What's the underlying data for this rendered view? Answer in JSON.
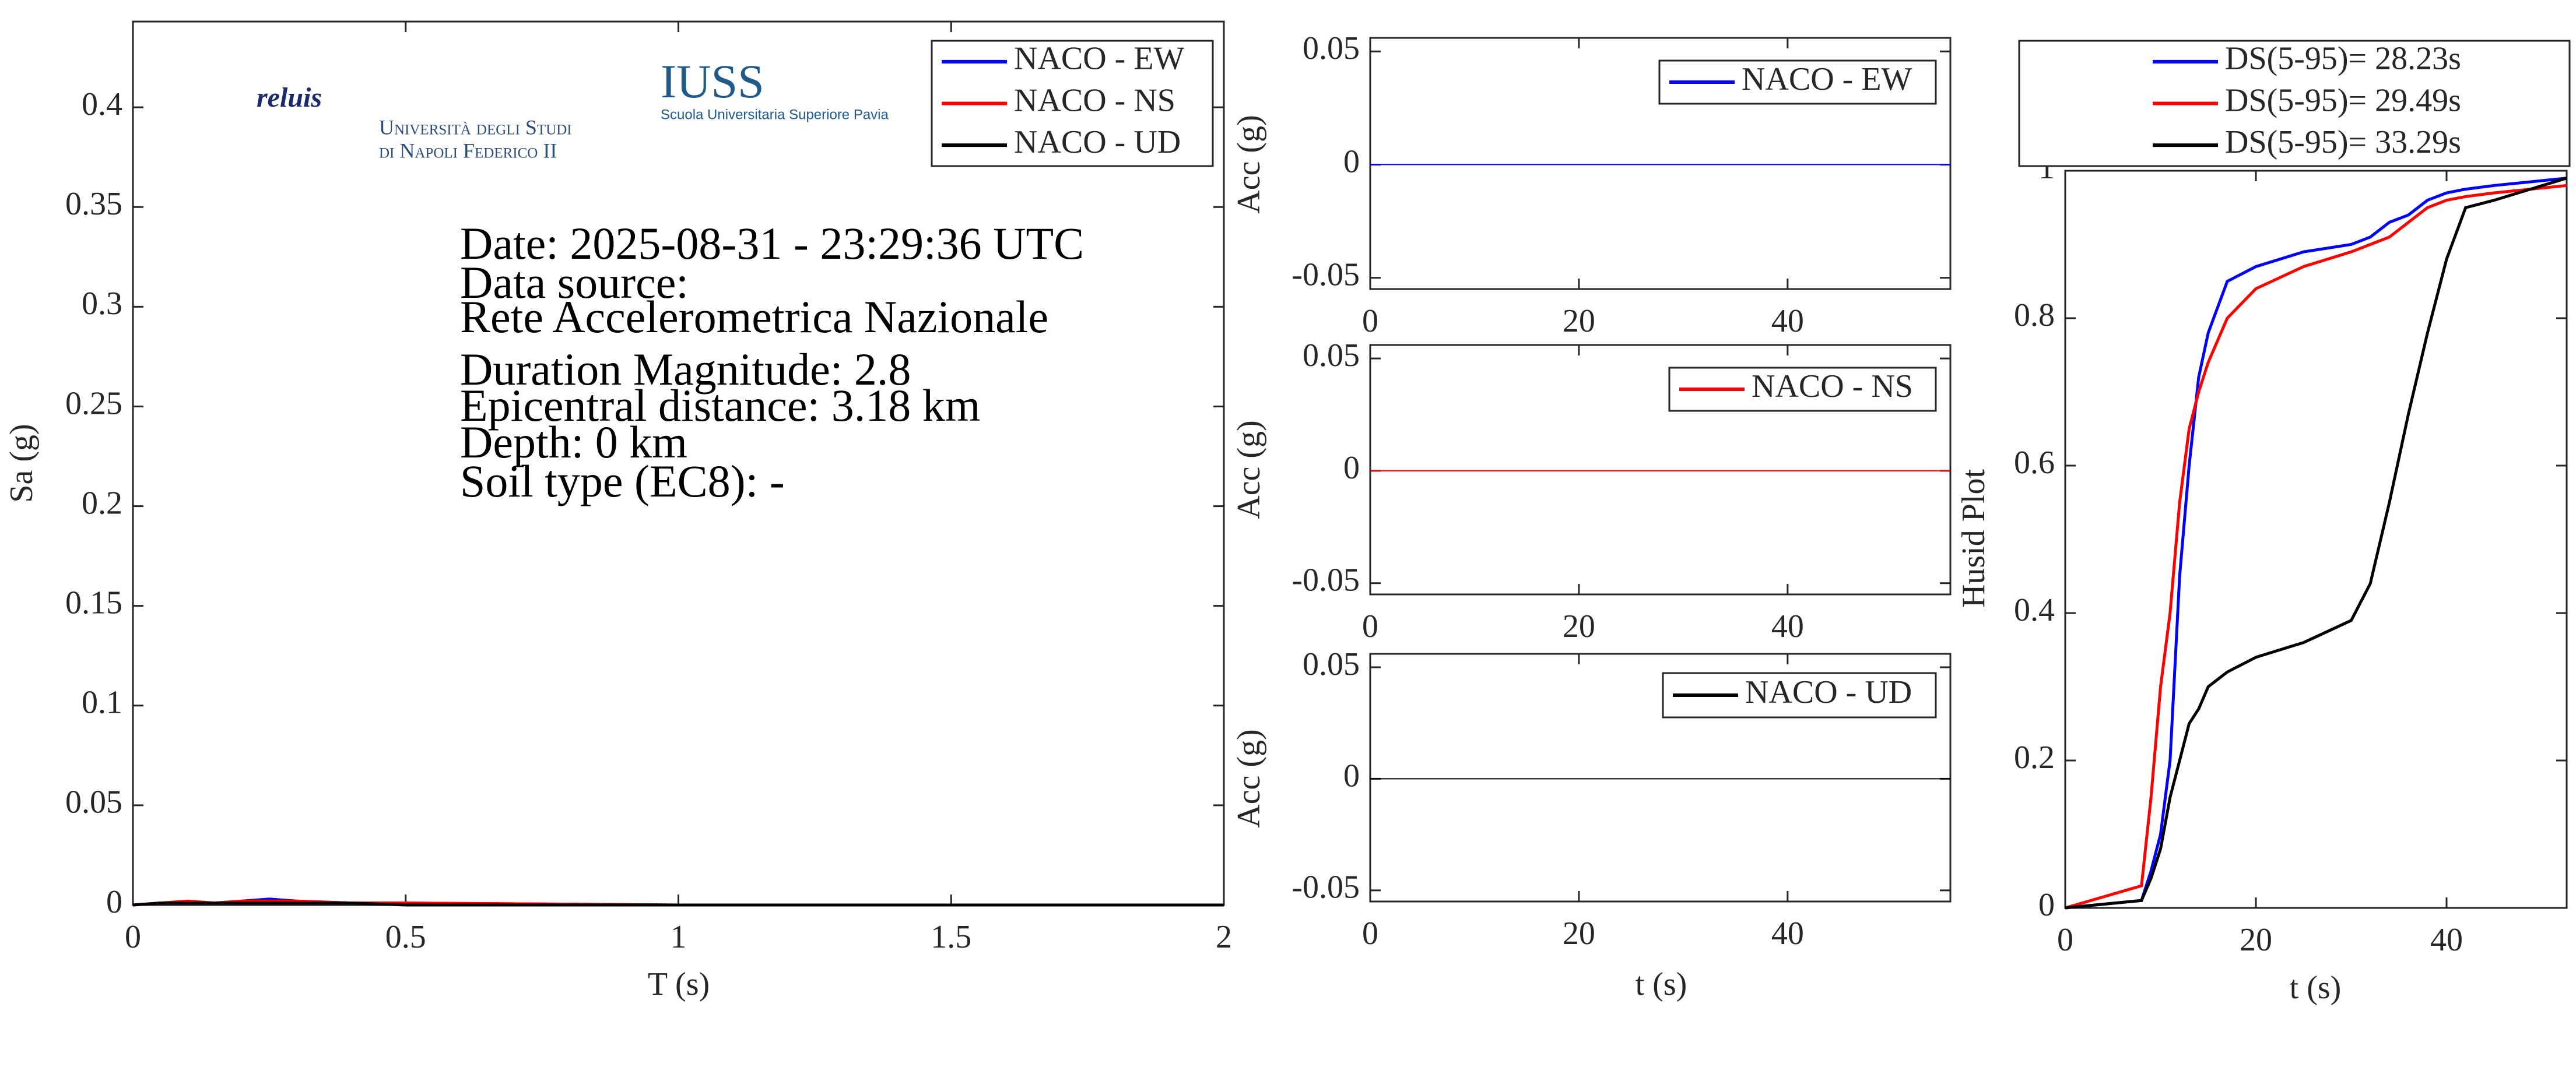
{
  "chart_data": [
    {
      "type": "line",
      "x_label": "T (s)",
      "y_label": "Sa (g)",
      "x": [
        0,
        0.05,
        0.1,
        0.15,
        0.2,
        0.25,
        0.3,
        0.4,
        0.5,
        1,
        1.5,
        2
      ],
      "series": [
        {
          "name": "NACO - EW",
          "color": "#0000ff",
          "values": [
            0,
            0.001,
            0.001,
            0.001,
            0.002,
            0.003,
            0.002,
            0.001,
            0.001,
            0,
            0,
            0
          ]
        },
        {
          "name": "NACO - NS",
          "color": "#ff0000",
          "values": [
            0,
            0.001,
            0.002,
            0.001,
            0.002,
            0.002,
            0.002,
            0.001,
            0.001,
            0,
            0,
            0
          ]
        },
        {
          "name": "NACO - UD",
          "color": "#000000",
          "values": [
            0,
            0.001,
            0.001,
            0.001,
            0.001,
            0.001,
            0.001,
            0.001,
            0,
            0,
            0,
            0
          ]
        }
      ],
      "xlim": [
        0,
        2
      ],
      "xticks": [
        0,
        0.5,
        1,
        1.5,
        2
      ],
      "ylim": [
        0,
        0.443
      ],
      "yticks": [
        0,
        0.05,
        0.1,
        0.15,
        0.2,
        0.25,
        0.3,
        0.35,
        0.4
      ],
      "legend": "upper right",
      "annotations": [
        "Date: 2025-08-31 - 23:29:36 UTC",
        "Data source:",
        "Rete Accelerometrica Nazionale",
        "Duration Magnitude: 2.8",
        "Epicentral distance: 3.18 km",
        "Depth: 0 km",
        "Soil type (EC8): -"
      ],
      "logos": [
        "reluis",
        "Università degli Studi",
        "di Napoli Federico II",
        "IUSS",
        "Scuola Universitaria Superiore Pavia"
      ]
    },
    {
      "type": "line",
      "x_label": "t (s)",
      "y_label": "Acc (g)",
      "x": [
        0,
        10,
        20,
        30,
        40,
        50,
        55.6
      ],
      "series": [
        {
          "name": "NACO - EW",
          "color": "#0000ff",
          "values": [
            0,
            0,
            0,
            0,
            0,
            0,
            0
          ]
        }
      ],
      "xlim": [
        0,
        55.6
      ],
      "xticks": [
        0,
        20,
        40
      ],
      "ylim": [
        -0.055,
        0.056
      ],
      "yticks": [
        -0.05,
        0,
        0.05
      ],
      "legend": "upper right"
    },
    {
      "type": "line",
      "x_label": "t (s)",
      "y_label": "Acc (g)",
      "x": [
        0,
        10,
        20,
        30,
        40,
        50,
        55.6
      ],
      "series": [
        {
          "name": "NACO - NS",
          "color": "#ff0000",
          "values": [
            0,
            0,
            0,
            0,
            0,
            0,
            0
          ]
        }
      ],
      "xlim": [
        0,
        55.6
      ],
      "xticks": [
        0,
        20,
        40
      ],
      "ylim": [
        -0.055,
        0.056
      ],
      "yticks": [
        -0.05,
        0,
        0.05
      ],
      "legend": "upper right"
    },
    {
      "type": "line",
      "x_label": "t (s)",
      "y_label": "Acc (g)",
      "x": [
        0,
        10,
        20,
        30,
        40,
        50,
        55.6
      ],
      "series": [
        {
          "name": "NACO - UD",
          "color": "#000000",
          "values": [
            0,
            0,
            0,
            0,
            0,
            0,
            0
          ]
        }
      ],
      "xlim": [
        0,
        55.6
      ],
      "xticks": [
        0,
        20,
        40
      ],
      "ylim": [
        -0.055,
        0.056
      ],
      "yticks": [
        -0.05,
        0,
        0.05
      ],
      "legend": "upper right"
    },
    {
      "type": "line",
      "x_label": "t (s)",
      "y_label": "Husid Plot",
      "x": [
        0,
        8,
        9,
        10,
        11,
        12,
        13,
        14,
        15,
        17,
        20,
        25,
        30,
        32,
        34,
        36,
        38,
        40,
        42,
        45,
        52.6
      ],
      "series": [
        {
          "name": "DS(5-95)= 28.23s",
          "color": "#0000ff",
          "values": [
            0,
            0.01,
            0.05,
            0.1,
            0.2,
            0.45,
            0.6,
            0.72,
            0.78,
            0.85,
            0.87,
            0.89,
            0.9,
            0.91,
            0.93,
            0.94,
            0.96,
            0.97,
            0.975,
            0.98,
            0.99
          ]
        },
        {
          "name": "DS(5-95)= 29.49s",
          "color": "#ff0000",
          "values": [
            0,
            0.03,
            0.15,
            0.3,
            0.4,
            0.55,
            0.65,
            0.7,
            0.74,
            0.8,
            0.84,
            0.87,
            0.89,
            0.9,
            0.91,
            0.93,
            0.95,
            0.96,
            0.965,
            0.97,
            0.98
          ]
        },
        {
          "name": "DS(5-95)= 33.29s",
          "color": "#000000",
          "values": [
            0,
            0.01,
            0.04,
            0.08,
            0.15,
            0.2,
            0.25,
            0.27,
            0.3,
            0.32,
            0.34,
            0.36,
            0.39,
            0.44,
            0.55,
            0.67,
            0.78,
            0.88,
            0.95,
            0.96,
            0.99
          ]
        }
      ],
      "xlim": [
        0,
        52.6
      ],
      "xticks": [
        0,
        20,
        40
      ],
      "ylim": [
        0,
        1
      ],
      "yticks": [
        0,
        0.2,
        0.4,
        0.6,
        0.8,
        1
      ],
      "legend": "outside top"
    }
  ]
}
